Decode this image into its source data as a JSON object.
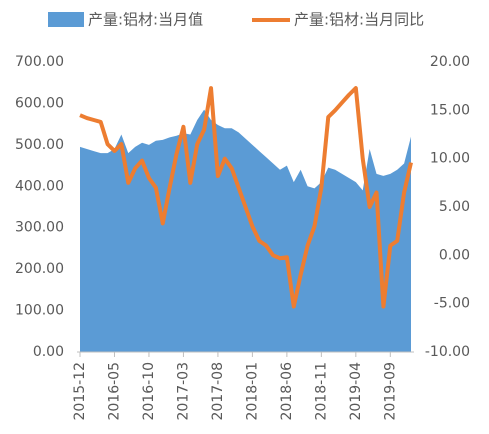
{
  "chart_data": {
    "type": "area_line",
    "categories": [
      "2015-12",
      null,
      null,
      null,
      null,
      "2016-05",
      null,
      null,
      null,
      null,
      "2016-10",
      null,
      null,
      null,
      null,
      "2017-03",
      null,
      null,
      null,
      null,
      "2017-08",
      null,
      null,
      null,
      null,
      "2018-01",
      null,
      null,
      null,
      null,
      "2018-06",
      null,
      null,
      null,
      null,
      "2018-11",
      null,
      null,
      null,
      null,
      "2019-04",
      null,
      null,
      null,
      null,
      "2019-09",
      null,
      null,
      null
    ],
    "series": [
      {
        "name": "产量:铝材:当月值",
        "color": "#5b9bd5",
        "type": "area",
        "values": [
          495,
          490,
          485,
          480,
          480,
          490,
          525,
          480,
          495,
          505,
          500,
          510,
          512,
          518,
          522,
          528,
          525,
          560,
          585,
          560,
          548,
          540,
          540,
          530,
          515,
          500,
          485,
          470,
          455,
          440,
          450,
          410,
          440,
          400,
          395,
          410,
          445,
          440,
          430,
          420,
          410,
          390,
          490,
          430,
          425,
          430,
          440,
          455,
          520
        ]
      },
      {
        "name": "产量:铝材:当月同比",
        "color": "#ed7d31",
        "type": "line",
        "axis": "y2",
        "values": [
          14.5,
          14.2,
          14.0,
          13.8,
          11.5,
          10.8,
          11.5,
          7.5,
          9.0,
          9.8,
          8.0,
          7.0,
          3.3,
          7.0,
          10.5,
          13.3,
          7.5,
          11.5,
          13.0,
          17.3,
          8.2,
          10.0,
          9.0,
          7.0,
          5.0,
          3.0,
          1.5,
          1.0,
          0.0,
          -0.3,
          -0.2,
          -5.3,
          -2.0,
          1.0,
          3.0,
          7.0,
          14.3,
          15.0,
          15.8,
          16.6,
          17.3,
          10.0,
          5.0,
          6.5,
          -5.3,
          1.0,
          1.5,
          6.5,
          9.6
        ]
      }
    ],
    "ylim": [
      0,
      700
    ],
    "yticks": [
      {
        "value": 0,
        "label": "0.00"
      },
      {
        "value": 100,
        "label": "100.00"
      },
      {
        "value": 200,
        "label": "200.00"
      },
      {
        "value": 300,
        "label": "300.00"
      },
      {
        "value": 400,
        "label": "400.00"
      },
      {
        "value": 500,
        "label": "500.00"
      },
      {
        "value": 600,
        "label": "600.00"
      },
      {
        "value": 700,
        "label": "700.00"
      }
    ],
    "y2lim": [
      -10,
      20
    ],
    "y2ticks": [
      {
        "value": -10,
        "label": "-10.00"
      },
      {
        "value": -5,
        "label": "-5.00"
      },
      {
        "value": 0,
        "label": "0.00"
      },
      {
        "value": 5,
        "label": "5.00"
      },
      {
        "value": 10,
        "label": "10.00"
      },
      {
        "value": 15,
        "label": "15.00"
      },
      {
        "value": 20,
        "label": "20.00"
      }
    ],
    "legend": "top"
  }
}
